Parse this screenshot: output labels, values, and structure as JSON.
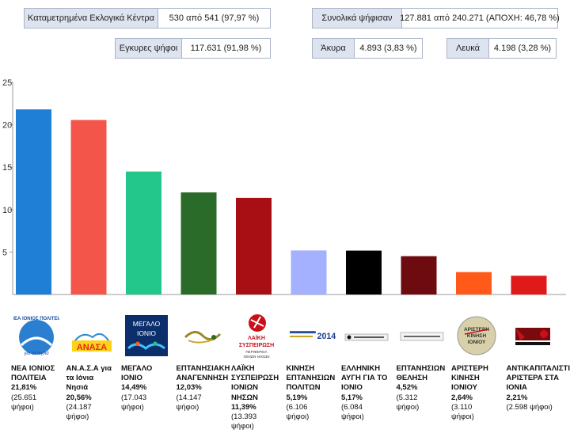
{
  "summary": {
    "centers_label": "Καταμετρημένα Εκλογικά Κέντρα",
    "centers_value": "530 από 541   (97,97 %)",
    "voted_label": "Συνολικά ψήφισαν",
    "voted_value": "127.881 από 240.271   (ΑΠΟΧΗ: 46,78 %)",
    "valid_label": "Εγκυρες ψήφοι",
    "valid_value": "117.631   (91,98 %)",
    "invalid_label": "Άκυρα",
    "invalid_value": "4.893   (3,83 %)",
    "blank_label": "Λευκά",
    "blank_value": "4.198   (3,28 %)"
  },
  "chart_data": {
    "type": "bar",
    "title": "",
    "xlabel": "",
    "ylabel": "",
    "ylim": [
      0,
      25
    ],
    "yticks": [
      "5",
      "10",
      "15",
      "20",
      "25"
    ],
    "grid": false,
    "categories": [
      "ΝΕΑ ΙΟΝΙΟΣ ΠΟΛΙΤΕΙΑ",
      "ΑΝ.Α.Σ.Α για τα Ιόνια Νησιά",
      "ΜΕΓΑΛΟ ΙΟΝΙΟ",
      "ΕΠΤΑΝΗΣΙΑΚΗ ΑΝΑΓΕΝΝΗΣΗ",
      "ΛΑΪΚΗ ΣΥΣΠΕΙΡΩΣΗ ΙΟΝΙΩΝ ΝΗΣΩΝ",
      "ΚΙΝΗΣΗ ΕΠΤΑΝΗΣΙΩΝ ΠΟΛΙΤΩΝ",
      "ΕΛΛΗΝΙΚΗ ΑΥΓΗ ΓΙΑ ΤΟ ΙΟΝΙΟ",
      "ΕΠΤΑΝΗΣΙΩΝ ΘΕΛΗΣΗ",
      "ΑΡΙΣΤΕΡΗ ΚΙΝΗΣΗ ΙΟΝΙΟΥ",
      "ΑΝΤΙΚΑΠΙΤΑΛΙΣΤΙΚΗ ΑΡΙΣΤΕΡΑ ΣΤΑ ΙΟΝΙΑ"
    ],
    "values": [
      21.81,
      20.56,
      14.49,
      12.03,
      11.39,
      5.19,
      5.17,
      4.52,
      2.64,
      2.21
    ],
    "colors": [
      "#1f7fd6",
      "#f4554a",
      "#23c78b",
      "#2b6b2a",
      "#a80f14",
      "#a3b1ff",
      "#000000",
      "#6e0b10",
      "#ff5a1a",
      "#e01a1a"
    ]
  },
  "parties": [
    {
      "name": "ΝΕΑ ΙΟΝΙΟΣ\nΠΟΛΙΤΕΙΑ",
      "pct": "21,81%",
      "votes": "(25.651\nψήφοι)",
      "logo": "nea-ionios-politeia-logo",
      "logo_text": "ΝΕΑ ΙΟΝΙΟΣ ΠΟΛΙΤΕΙΑ"
    },
    {
      "name": "ΑΝ.Α.Σ.Α για\nτα Ιόνια\nΝησιά",
      "pct": "20,56%",
      "votes": "(24.187\nψήφοι)",
      "logo": "anasa-logo",
      "logo_text": "ΑΝΑΣΑ"
    },
    {
      "name": "ΜΕΓΑΛΟ\nΙΟΝΙΟ",
      "pct": "14,49%",
      "votes": "(17.043\nψήφοι)",
      "logo": "megalo-ionio-logo",
      "logo_text": "ΜΕΓΑΛΟ ΙΟΝΙΟ"
    },
    {
      "name": "ΕΠΤΑΝΗΣΙΑΚΗ\nΑΝΑΓΕΝΝΗΣΗ",
      "pct": "12,03%",
      "votes": "(14.147\nψήφοι)",
      "logo": "eptanisiaki-anagennisi-logo",
      "logo_text": ""
    },
    {
      "name": "ΛΑΪΚΗ\nΣΥΣΠΕΙΡΩΣΗ\nΙΟΝΙΩΝ\nΝΗΣΩΝ",
      "pct": "11,39%",
      "votes": "(13.393\nψήφοι)",
      "logo": "laiki-syspeirosi-logo",
      "logo_text": "ΛΑΪΚΗ ΣΥΣΠΕΙΡΩΣΗ"
    },
    {
      "name": "ΚΙΝΗΣΗ\nΕΠΤΑΝΗΣΙΩΝ\nΠΟΛΙΤΩΝ",
      "pct": "5,19%",
      "votes": "(6.106\nψήφοι)",
      "logo": "kinisi-eptanision-politon-logo",
      "logo_text": "2014"
    },
    {
      "name": "ΕΛΛΗΝΙΚΗ\nΑΥΓΗ ΓΙΑ ΤΟ\nΙΟΝΙΟ",
      "pct": "5,17%",
      "votes": "(6.084\nψήφοι)",
      "logo": "elliniki-avgi-logo",
      "logo_text": ""
    },
    {
      "name": "ΕΠΤΑΝΗΣΙΩΝ\nΘΕΛΗΣΗ",
      "pct": "4,52%",
      "votes": "(5.312\nψήφοι)",
      "logo": "eptanision-thelisi-logo",
      "logo_text": ""
    },
    {
      "name": "ΑΡΙΣΤΕΡΗ\nΚΙΝΗΣΗ\nΙΟΝΙΟΥ",
      "pct": "2,64%",
      "votes": "(3.110\nψήφοι)",
      "logo": "aristeri-kinisi-logo",
      "logo_text": "ΑΡΙΣΤΕΡΗ ΚΙΝΗΣΗ ΙΟΝΙΟΥ"
    },
    {
      "name": "ΑΝΤΙΚΑΠΙΤΑΛΙΣΤΙΚΗ\nΑΡΙΣΤΕΡΑ ΣΤΑ ΙΟΝΙΑ",
      "pct": "2,21%",
      "votes": "(2.598 ψήφοι)",
      "logo": "antikapitalistiki-logo",
      "logo_text": ""
    }
  ]
}
